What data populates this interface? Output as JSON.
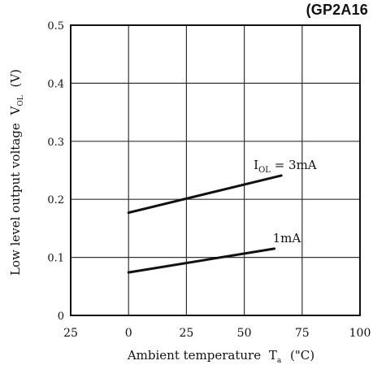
{
  "header_tag": "(GP2A16",
  "chart_data": {
    "type": "line",
    "xlabel": "Ambient temperature",
    "xlabel_symbol": "T",
    "xlabel_sub": "a",
    "xlabel_unit": "(\"C)",
    "ylabel": "Low level output voltage",
    "ylabel_symbol": "V",
    "ylabel_sub": "OL",
    "ylabel_unit": "(V)",
    "xlim": [
      -25,
      100
    ],
    "ylim": [
      0,
      0.5
    ],
    "x_ticks": [
      -25,
      0,
      25,
      50,
      75,
      100
    ],
    "x_tick_labels": [
      "25",
      "0",
      "25",
      "50",
      "75",
      "100"
    ],
    "y_ticks": [
      0,
      0.1,
      0.2,
      0.3,
      0.4,
      0.5
    ],
    "y_tick_labels": [
      "0",
      "0.1",
      "0.2",
      "0.3",
      "0.4",
      "0.5"
    ],
    "grid": true,
    "series": [
      {
        "name": "IOL = 3mA",
        "label_main": "I",
        "label_sub": "OL",
        "label_rest": " = 3mA",
        "x": [
          0,
          66
        ],
        "y": [
          0.177,
          0.241
        ]
      },
      {
        "name": "1mA",
        "label_main": "1mA",
        "label_sub": "",
        "label_rest": "",
        "x": [
          0,
          63
        ],
        "y": [
          0.074,
          0.115
        ]
      }
    ]
  }
}
